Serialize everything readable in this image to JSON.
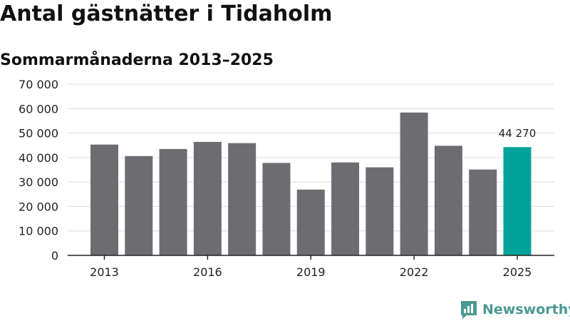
{
  "chart_data": {
    "type": "bar",
    "title": "Antal gästnätter i Tidaholm",
    "subtitle": "Sommarmånaderna 2013–2025",
    "categories": [
      "2013",
      "2014",
      "2015",
      "2016",
      "2017",
      "2018",
      "2019",
      "2020",
      "2021",
      "2022",
      "2023",
      "2024",
      "2025"
    ],
    "values": [
      45300,
      40600,
      43500,
      46400,
      45900,
      37800,
      26900,
      38000,
      36000,
      58400,
      44800,
      35100,
      44270
    ],
    "ylim": [
      0,
      70000
    ],
    "yticks": [
      0,
      10000,
      20000,
      30000,
      40000,
      50000,
      60000,
      70000
    ],
    "ytick_labels": [
      "0",
      "10 000",
      "20 000",
      "30 000",
      "40 000",
      "50 000",
      "60 000",
      "70 000"
    ],
    "xtick_labels": [
      "2013",
      "2016",
      "2019",
      "2022",
      "2025"
    ],
    "data_labels": [
      {
        "category": "2025",
        "text": "44 270"
      }
    ],
    "bar_color": "#6d6c70",
    "highlight_color": "#00a39a",
    "highlight_category": "2025",
    "grid": true
  },
  "brand": {
    "name": "Newsworthy",
    "icon": "newsworthy-logo-icon",
    "color": "#4a9a93"
  }
}
